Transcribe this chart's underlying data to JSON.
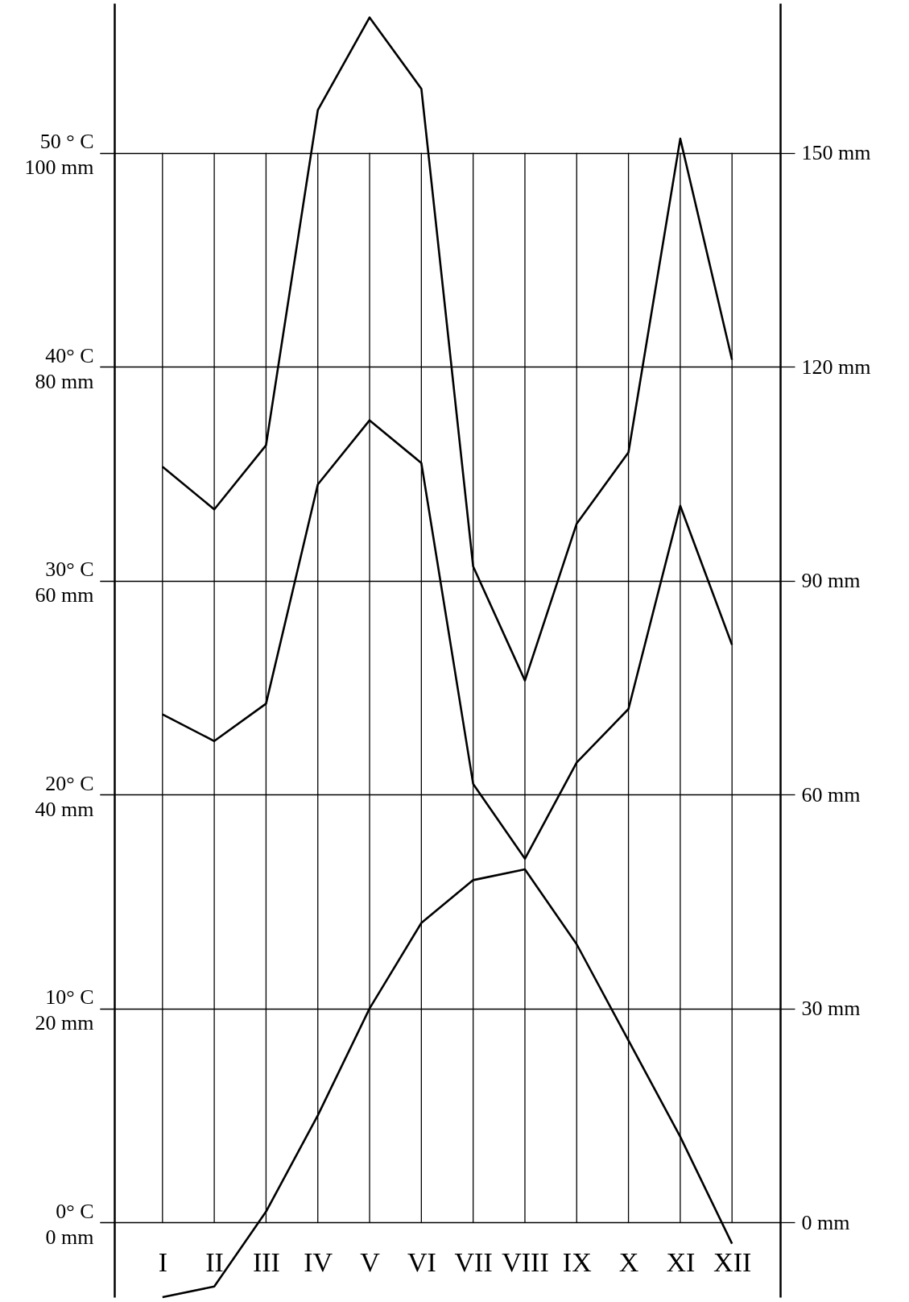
{
  "chart_data": {
    "type": "line",
    "categories": [
      "I",
      "II",
      "III",
      "IV",
      "V",
      "VI",
      "VII",
      "VIII",
      "IX",
      "X",
      "XI",
      "XII"
    ],
    "series": [
      {
        "color": "#000000",
        "values": [
          -3.5,
          -3,
          0.5,
          5,
          10,
          14,
          16,
          16.5,
          13,
          8.5,
          4,
          -1
        ]
      },
      {
        "color": "#000000",
        "axis": "y3",
        "values": [
          47.5,
          45,
          48.5,
          69,
          75,
          71,
          41,
          34,
          43,
          48,
          67,
          54
        ]
      },
      {
        "color": "#000000",
        "axis": "y2",
        "values": [
          106,
          100,
          109,
          156,
          169,
          159,
          92,
          76,
          98,
          108,
          152,
          121
        ]
      }
    ],
    "ylim": [
      -3.5,
      57
    ],
    "yticks": [
      {
        "value": 0,
        "label": "0° C"
      },
      {
        "value": 10,
        "label": "10° C"
      },
      {
        "value": 20,
        "label": "20° C"
      },
      {
        "value": 30,
        "label": "30° C"
      },
      {
        "value": 40,
        "label": "40° C"
      },
      {
        "value": 50,
        "label": "50 ° C"
      }
    ],
    "y3lim": [
      -7,
      114
    ],
    "y3ticks": [
      {
        "value": 0,
        "label": "0 mm"
      },
      {
        "value": 20,
        "label": "20 mm"
      },
      {
        "value": 40,
        "label": "40 mm"
      },
      {
        "value": 60,
        "label": "60 mm"
      },
      {
        "value": 80,
        "label": "80 mm"
      },
      {
        "value": 100,
        "label": "100 mm"
      }
    ],
    "y2lim": [
      -10.5,
      171
    ],
    "y2ticks": [
      {
        "value": 0,
        "label": "0 mm"
      },
      {
        "value": 30,
        "label": "30 mm"
      },
      {
        "value": 60,
        "label": "60 mm"
      },
      {
        "value": 90,
        "label": "90 mm"
      },
      {
        "value": 120,
        "label": "120 mm"
      },
      {
        "value": 150,
        "label": "150 mm"
      }
    ],
    "grid": true,
    "marker": "none",
    "line_style": "solid"
  }
}
